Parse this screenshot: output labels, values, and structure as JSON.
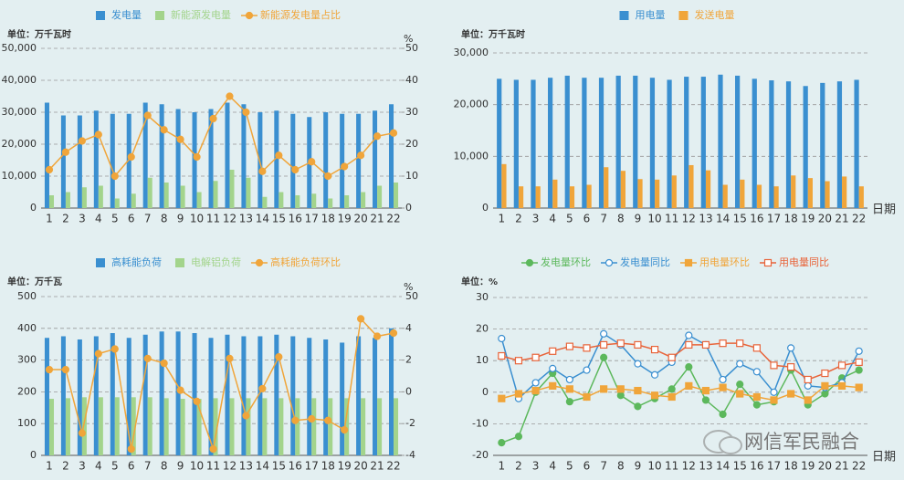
{
  "chart_data": [
    {
      "type": "combo",
      "y_label": "单位：万千瓦时",
      "y2_label": "%",
      "categories": [
        "1",
        "2",
        "3",
        "4",
        "5",
        "6",
        "7",
        "8",
        "9",
        "10",
        "11",
        "12",
        "13",
        "14",
        "15",
        "16",
        "17",
        "18",
        "19",
        "20",
        "21",
        "22"
      ],
      "ylim": [
        0,
        50000
      ],
      "yticks": [
        0,
        {
          "value": 10000,
          "label": "10,000"
        },
        {
          "value": 20000,
          "label": "20,000"
        },
        {
          "value": 30000,
          "label": "30,000"
        },
        {
          "value": 40000,
          "label": "40,000"
        },
        {
          "value": 50000,
          "label": "50,000"
        }
      ],
      "y2lim": [
        0,
        50
      ],
      "y2ticks": [
        0,
        10,
        20,
        30,
        40,
        50
      ],
      "grid": true,
      "series": [
        {
          "name": "发电量",
          "type": "bar",
          "color": "#3a8fd0",
          "values": [
            33000,
            29000,
            29000,
            30500,
            29500,
            29500,
            33000,
            32500,
            31000,
            30000,
            31000,
            33000,
            32500,
            30000,
            30500,
            29500,
            28500,
            30000,
            29500,
            29500,
            30500,
            32500
          ]
        },
        {
          "name": "新能源发电量",
          "type": "bar",
          "color": "#a3d48c",
          "values": [
            4000,
            5000,
            6500,
            7000,
            3000,
            4500,
            9500,
            8000,
            7000,
            5000,
            8500,
            12000,
            9500,
            3500,
            5000,
            4000,
            4500,
            3000,
            4000,
            5000,
            7000,
            8000
          ]
        },
        {
          "name": "新能源发电量占比",
          "type": "line",
          "axis": "y2",
          "marker": "circle",
          "color": "#f0a53a",
          "values": [
            12,
            17.5,
            21,
            23,
            10,
            16,
            29,
            24.5,
            21.5,
            16,
            28,
            35,
            30,
            11.5,
            16.5,
            12,
            14.5,
            10,
            13,
            16.5,
            22.5,
            23.5
          ]
        }
      ]
    },
    {
      "type": "combo",
      "y_label": "单位：万千瓦时",
      "x_label": "日期",
      "categories": [
        "1",
        "2",
        "3",
        "4",
        "5",
        "6",
        "7",
        "8",
        "9",
        "10",
        "11",
        "12",
        "13",
        "14",
        "15",
        "16",
        "17",
        "18",
        "19",
        "20",
        "21",
        "22"
      ],
      "ylim": [
        0,
        30000
      ],
      "yticks": [
        0,
        {
          "value": 10000,
          "label": "10,000"
        },
        {
          "value": 20000,
          "label": "20,000"
        },
        {
          "value": 30000,
          "label": "30,000"
        }
      ],
      "grid": true,
      "series": [
        {
          "name": "用电量",
          "type": "bar",
          "color": "#3a8fd0",
          "values": [
            25000,
            24800,
            24800,
            25200,
            25600,
            25200,
            25200,
            25600,
            25600,
            25200,
            24800,
            25400,
            25400,
            25800,
            25600,
            25000,
            24700,
            24500,
            23600,
            24200,
            24500,
            24800
          ]
        },
        {
          "name": "发送电量",
          "type": "bar",
          "color": "#f0a53a",
          "values": [
            8500,
            4200,
            4200,
            5500,
            4200,
            4500,
            7900,
            7200,
            5600,
            5500,
            6300,
            8300,
            7300,
            4500,
            5500,
            4500,
            4200,
            6300,
            5800,
            5200,
            6100,
            4200
          ]
        }
      ]
    },
    {
      "type": "combo",
      "y_label": "单位：万千瓦",
      "y2_label": "%",
      "y2_top_label": "50",
      "categories": [
        "1",
        "2",
        "3",
        "4",
        "5",
        "6",
        "7",
        "8",
        "9",
        "10",
        "11",
        "12",
        "13",
        "14",
        "15",
        "16",
        "17",
        "18",
        "19",
        "20",
        "21",
        "22"
      ],
      "ylim": [
        0,
        500
      ],
      "yticks": [
        0,
        100,
        200,
        300,
        400,
        500
      ],
      "y2lim": [
        -4,
        6
      ],
      "y2ticks": [
        -4,
        -2,
        0,
        2,
        4
      ],
      "grid": true,
      "series": [
        {
          "name": "高耗能负荷",
          "type": "bar",
          "color": "#3a8fd0",
          "values": [
            370,
            375,
            365,
            375,
            385,
            370,
            380,
            390,
            390,
            385,
            370,
            380,
            375,
            375,
            380,
            375,
            370,
            365,
            355,
            375,
            370,
            400
          ]
        },
        {
          "name": "电解铝负荷",
          "type": "bar",
          "color": "#a3d48c",
          "values": [
            178,
            180,
            183,
            183,
            183,
            183,
            183,
            180,
            178,
            178,
            180,
            180,
            180,
            180,
            180,
            180,
            180,
            180,
            180,
            180,
            180,
            180
          ]
        },
        {
          "name": "高耗能负荷环比",
          "type": "line",
          "axis": "y2",
          "marker": "circle",
          "color": "#f0a53a",
          "values": [
            1.4,
            1.4,
            -2.6,
            2.4,
            2.7,
            -3.6,
            2.1,
            1.8,
            0.1,
            -0.6,
            -3.6,
            2.1,
            -1.5,
            0.2,
            2.2,
            -1.8,
            -1.7,
            -1.8,
            -2.4,
            4.6,
            3.5,
            3.7
          ]
        }
      ]
    },
    {
      "type": "line",
      "y_label": "单位：%",
      "x_label": "日期",
      "categories": [
        "1",
        "2",
        "3",
        "4",
        "5",
        "6",
        "7",
        "8",
        "9",
        "10",
        "11",
        "12",
        "13",
        "14",
        "15",
        "16",
        "17",
        "18",
        "19",
        "20",
        "21",
        "22"
      ],
      "ylim": [
        -20,
        30
      ],
      "yticks": [
        -20,
        -10,
        0,
        10,
        20,
        30
      ],
      "grid": true,
      "series": [
        {
          "name": "发电量环比",
          "type": "line",
          "marker": "circle",
          "color": "#5cb85c",
          "values": [
            -16,
            -14,
            0,
            6,
            -3,
            -1.5,
            11,
            -1,
            -4.5,
            -2,
            1,
            8,
            -2.5,
            -7,
            2.5,
            -4,
            -3,
            7,
            -4,
            -0.5,
            4.5,
            7
          ]
        },
        {
          "name": "发电量同比",
          "type": "line",
          "marker": "circle-open",
          "color": "#3a8fd0",
          "values": [
            17,
            -2,
            3,
            7.5,
            4,
            7,
            18.5,
            15,
            9,
            5.5,
            9.5,
            18,
            15,
            4,
            9,
            6.5,
            0,
            14,
            2,
            1.5,
            3,
            13
          ]
        },
        {
          "name": "用电量环比",
          "type": "line",
          "marker": "square",
          "color": "#f0a53a",
          "values": [
            -2,
            -0.5,
            0.5,
            2,
            1,
            -1.5,
            1,
            1,
            0.5,
            -1,
            -1.5,
            2,
            0.5,
            1.5,
            -0.5,
            -1.5,
            -2.5,
            -0.5,
            -2.5,
            2,
            2,
            1.5
          ]
        },
        {
          "name": "用电量同比",
          "type": "line",
          "marker": "square-open",
          "color": "#e8643a",
          "values": [
            11.5,
            10,
            11,
            13,
            14.5,
            14,
            15,
            15.5,
            15,
            13.5,
            11,
            15,
            15,
            15.5,
            15.5,
            14,
            8.5,
            8,
            4,
            6,
            8.5,
            9.5
          ]
        }
      ]
    }
  ],
  "watermark": "网信军民融合"
}
